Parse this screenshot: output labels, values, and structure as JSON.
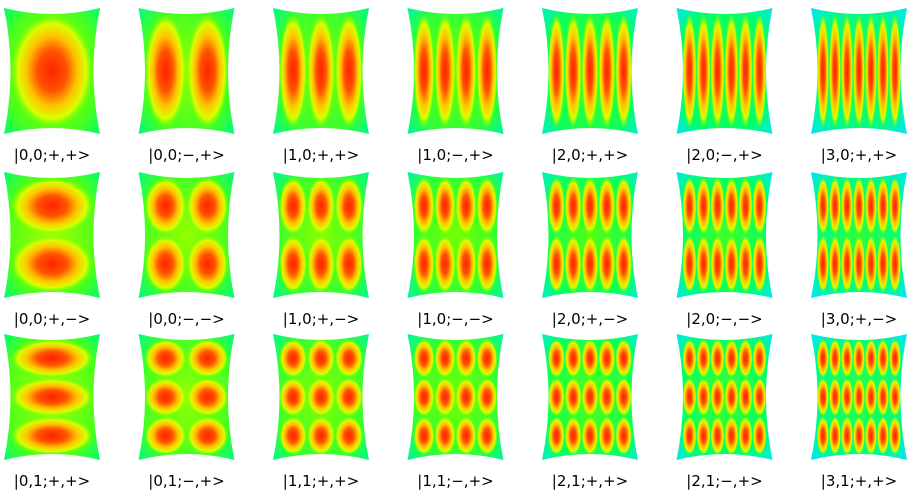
{
  "colors": {
    "background": "#ffffff",
    "colormap": [
      "#00e5ff",
      "#00ff66",
      "#66ff00",
      "#ffff00",
      "#ff9900",
      "#ff2200"
    ]
  },
  "panels": [
    {
      "label": "|0,0;+,+>",
      "nx": 1,
      "ny": 1,
      "node": false,
      "bg": 0.3
    },
    {
      "label": "|0,0;−,+>",
      "nx": 2,
      "ny": 1,
      "node": false,
      "bg": 0.28
    },
    {
      "label": "|1,0;+,+>",
      "nx": 3,
      "ny": 1,
      "node": false,
      "bg": 0.26
    },
    {
      "label": "|1,0;−,+>",
      "nx": 4,
      "ny": 1,
      "node": false,
      "bg": 0.24
    },
    {
      "label": "|2,0;+,+>",
      "nx": 5,
      "ny": 1,
      "node": false,
      "bg": 0.18
    },
    {
      "label": "|2,0;−,+>",
      "nx": 6,
      "ny": 1,
      "node": false,
      "bg": 0.14
    },
    {
      "label": "|3,0;+,+>",
      "nx": 7,
      "ny": 1,
      "node": false,
      "bg": 0.1
    },
    {
      "label": "|0,0;+,−>",
      "nx": 1,
      "ny": 2,
      "node": true,
      "bg": 0.3
    },
    {
      "label": "|0,0;−,−>",
      "nx": 2,
      "ny": 2,
      "node": true,
      "bg": 0.28
    },
    {
      "label": "|1,0;+,−>",
      "nx": 3,
      "ny": 2,
      "node": true,
      "bg": 0.26
    },
    {
      "label": "|1,0;−,−>",
      "nx": 4,
      "ny": 2,
      "node": true,
      "bg": 0.24
    },
    {
      "label": "|2,0;+,−>",
      "nx": 5,
      "ny": 2,
      "node": true,
      "bg": 0.18
    },
    {
      "label": "|2,0;−,−>",
      "nx": 6,
      "ny": 2,
      "node": true,
      "bg": 0.14
    },
    {
      "label": "|3,0;+,−>",
      "nx": 7,
      "ny": 2,
      "node": true,
      "bg": 0.1
    },
    {
      "label": "|0,1;+,+>",
      "nx": 1,
      "ny": 3,
      "node": false,
      "bg": 0.3
    },
    {
      "label": "|0,1;−,+>",
      "nx": 2,
      "ny": 3,
      "node": false,
      "bg": 0.28
    },
    {
      "label": "|1,1;+,+>",
      "nx": 3,
      "ny": 3,
      "node": false,
      "bg": 0.26
    },
    {
      "label": "|1,1;−,+>",
      "nx": 4,
      "ny": 3,
      "node": false,
      "bg": 0.24
    },
    {
      "label": "|2,1;+,+>",
      "nx": 5,
      "ny": 3,
      "node": false,
      "bg": 0.18
    },
    {
      "label": "|2,1;−,+>",
      "nx": 6,
      "ny": 3,
      "node": false,
      "bg": 0.14
    },
    {
      "label": "|3,1;+,+>",
      "nx": 7,
      "ny": 3,
      "node": false,
      "bg": 0.1
    }
  ]
}
